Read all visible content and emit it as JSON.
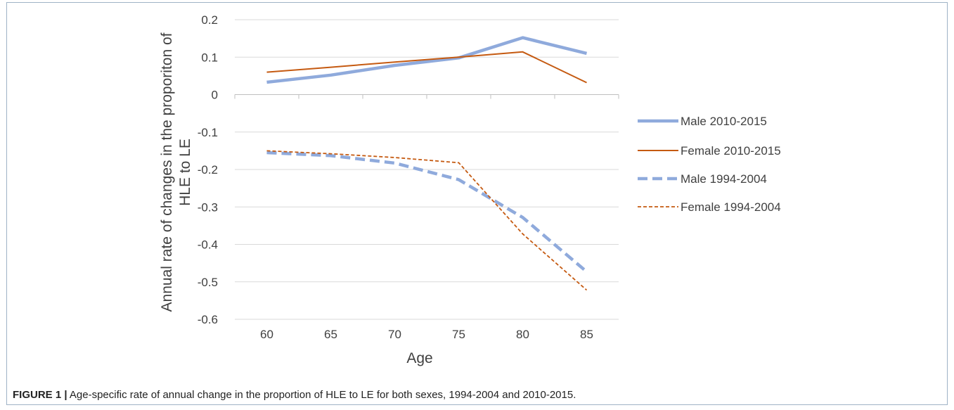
{
  "chart_data": {
    "type": "line",
    "categories": [
      "60",
      "65",
      "70",
      "75",
      "80",
      "85"
    ],
    "xlabel": "Age",
    "ylabel_lines": [
      "Annual rate of changes in the proporiton of",
      "HLE to LE"
    ],
    "ylim": [
      -0.6,
      0.2
    ],
    "yticks": [
      "0.2",
      "0.1",
      "0",
      "-0.1",
      "-0.2",
      "-0.3",
      "-0.4",
      "-0.5",
      "-0.6"
    ],
    "ytick_values": [
      0.2,
      0.1,
      0,
      -0.1,
      -0.2,
      -0.3,
      -0.4,
      -0.5,
      -0.6
    ],
    "grid": true,
    "legend_position": "right",
    "series": [
      {
        "name": "Male 2010-2015",
        "values": [
          0.033,
          0.052,
          0.078,
          0.098,
          0.152,
          0.11
        ],
        "color": "#8faadc",
        "style": "solid-thick"
      },
      {
        "name": "Female 2010-2015",
        "values": [
          0.06,
          0.073,
          0.087,
          0.1,
          0.114,
          0.032
        ],
        "color": "#c55a11",
        "style": "solid-thin"
      },
      {
        "name": "Male 1994-2004",
        "values": [
          -0.155,
          -0.163,
          -0.183,
          -0.227,
          -0.328,
          -0.473
        ],
        "color": "#8faadc",
        "style": "dashed-thick"
      },
      {
        "name": "Female 1994-2004",
        "values": [
          -0.15,
          -0.158,
          -0.168,
          -0.182,
          -0.372,
          -0.522
        ],
        "color": "#c55a11",
        "style": "dashed-thin"
      }
    ]
  },
  "caption": {
    "label": "FIGURE 1 |",
    "text": " Age-specific rate of annual change in the proportion of HLE to LE for both sexes, 1994-2004 and 2010-2015."
  }
}
